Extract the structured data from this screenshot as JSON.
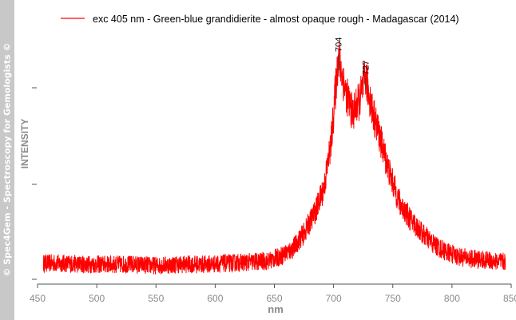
{
  "sidebar": {
    "text": "© Spec4Gem - Spectroscopy for Gemologists ©"
  },
  "chart_data": {
    "type": "line",
    "title": "",
    "xlabel": "nm",
    "ylabel": "INTENSITY",
    "xlim": [
      450,
      850
    ],
    "ylim": [
      0,
      1
    ],
    "x_ticks": [
      450,
      500,
      550,
      600,
      650,
      700,
      750,
      800,
      850
    ],
    "y_ticks_labeled": false,
    "grid": false,
    "legend": {
      "position": "top",
      "entries": [
        "exc 405 nm - Green-blue grandidierite - almost opaque rough - Madagascar (2014)"
      ]
    },
    "series": [
      {
        "name": "exc 405 nm - Green-blue grandidierite - almost opaque rough - Madagascar (2014)",
        "color": "#ff0000",
        "x": [
          455,
          470,
          490,
          510,
          530,
          550,
          570,
          590,
          610,
          630,
          645,
          655,
          665,
          675,
          685,
          692,
          698,
          704,
          710,
          716,
          722,
          727,
          733,
          740,
          748,
          756,
          765,
          775,
          785,
          795,
          805,
          815,
          825,
          835,
          845
        ],
        "y": [
          0.07,
          0.07,
          0.065,
          0.065,
          0.065,
          0.06,
          0.065,
          0.065,
          0.07,
          0.075,
          0.08,
          0.1,
          0.13,
          0.2,
          0.3,
          0.4,
          0.6,
          0.97,
          0.82,
          0.72,
          0.78,
          0.88,
          0.73,
          0.6,
          0.45,
          0.33,
          0.26,
          0.2,
          0.15,
          0.12,
          0.1,
          0.09,
          0.085,
          0.08,
          0.075
        ]
      }
    ],
    "annotations": [
      {
        "x": 704,
        "label": "704"
      },
      {
        "x": 727,
        "label": "727"
      }
    ]
  }
}
